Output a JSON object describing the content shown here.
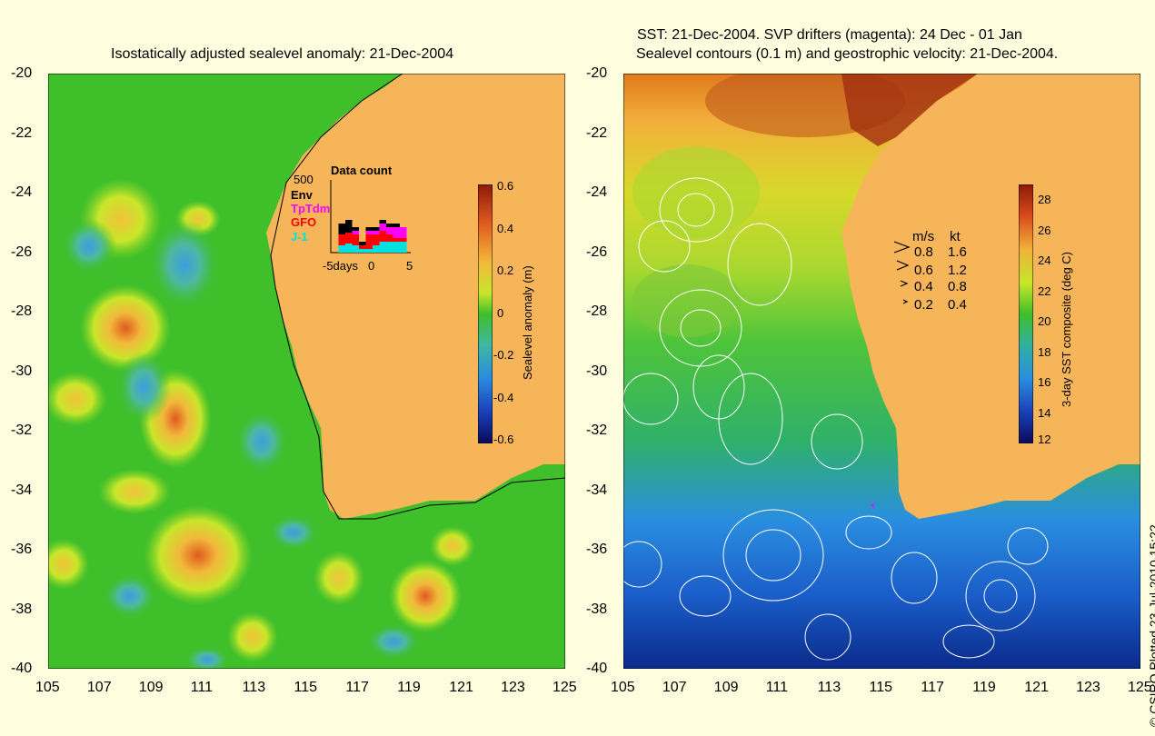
{
  "left_panel": {
    "title": "Isostatically adjusted sealevel anomaly: 21-Dec-2004",
    "colorbar": {
      "label": "Sealevel anomaly (m)",
      "ticks": [
        "0.6",
        "0.4",
        "0.2",
        "0",
        "-0.2",
        "-0.4",
        "-0.6"
      ]
    },
    "data_count": {
      "title": "Data count",
      "scale_label": "500",
      "legend": [
        {
          "name": "Env",
          "color": "#000000"
        },
        {
          "name": "TpTdm",
          "color": "#ff00ff"
        },
        {
          "name": "GFO",
          "color": "#ff0000"
        },
        {
          "name": "J-1",
          "color": "#00e0e0"
        }
      ],
      "x_ticks": [
        "-5days",
        "0",
        "5"
      ],
      "bars": [
        {
          "day": -5,
          "env": 0,
          "tp": 0,
          "gfo": 0,
          "j1": 0
        },
        {
          "day": -4,
          "env": 0.3,
          "tp": 0,
          "gfo": 0.3,
          "j1": 0.2
        },
        {
          "day": -3,
          "env": 0.35,
          "tp": 0,
          "gfo": 0.3,
          "j1": 0.25
        },
        {
          "day": -2,
          "env": 0.1,
          "tp": 0.1,
          "gfo": 0.3,
          "j1": 0.2
        },
        {
          "day": -1,
          "env": 0.1,
          "tp": 0,
          "gfo": 0.1,
          "j1": 0.1
        },
        {
          "day": 0,
          "env": 0.1,
          "tp": 0.1,
          "gfo": 0.4,
          "j1": 0.1
        },
        {
          "day": 1,
          "env": 0.1,
          "tp": 0.1,
          "gfo": 0.3,
          "j1": 0.2
        },
        {
          "day": 2,
          "env": 0.1,
          "tp": 0.2,
          "gfo": 0.3,
          "j1": 0.3
        },
        {
          "day": 3,
          "env": 0.1,
          "tp": 0.2,
          "gfo": 0.2,
          "j1": 0.3
        },
        {
          "day": 4,
          "env": 0.1,
          "tp": 0.3,
          "gfo": 0.1,
          "j1": 0.3
        },
        {
          "day": 5,
          "env": 0,
          "tp": 0.3,
          "gfo": 0.1,
          "j1": 0.3
        }
      ]
    }
  },
  "right_panel": {
    "title_line1": "SST: 21-Dec-2004. SVP drifters (magenta): 24 Dec - 01 Jan",
    "title_line2": "Sealevel contours (0.1 m) and geostrophic velocity: 21-Dec-2004.",
    "colorbar": {
      "label": "3-day SST composite (deg C)",
      "ticks": [
        "28",
        "26",
        "24",
        "22",
        "20",
        "18",
        "16",
        "14",
        "12"
      ]
    },
    "velocity_legend": {
      "header_ms": "m/s",
      "header_kt": "kt",
      "rows": [
        {
          "ms": "0.8",
          "kt": "1.6"
        },
        {
          "ms": "0.6",
          "kt": "1.2"
        },
        {
          "ms": "0.4",
          "kt": "0.8"
        },
        {
          "ms": "0.2",
          "kt": "0.4"
        }
      ]
    }
  },
  "axes": {
    "lat_ticks": [
      "-20",
      "-22",
      "-24",
      "-26",
      "-28",
      "-30",
      "-32",
      "-34",
      "-36",
      "-38",
      "-40"
    ],
    "lon_ticks": [
      "105",
      "107",
      "109",
      "111",
      "113",
      "115",
      "117",
      "119",
      "121",
      "123",
      "125"
    ]
  },
  "credit": "© CSIRO Plotted 23-Jul-2010 15:22",
  "colors": {
    "background": "#ffffe0",
    "land": "#f7b55a",
    "ocean_ssh": "#3fbf2a"
  }
}
